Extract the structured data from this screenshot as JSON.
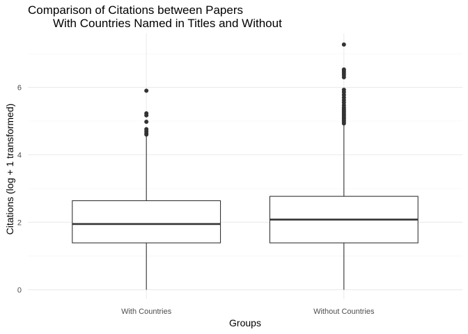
{
  "chart_data": {
    "type": "box",
    "title_line1": "Comparison of Citations between Papers",
    "title_line2": "With Countries Named in Titles and Without",
    "xlabel": "Groups",
    "ylabel": "Citations (log + 1 transformed)",
    "ylim": [
      -0.28,
      7.6
    ],
    "yticks": [
      0,
      2,
      4,
      6
    ],
    "ytick_labels": [
      "0",
      "2",
      "4",
      "6"
    ],
    "grid": true,
    "categories": [
      "With Countries",
      "Without Countries"
    ],
    "boxes": [
      {
        "name": "With Countries",
        "min": 0,
        "q1": 1.39,
        "median": 1.95,
        "q3": 2.64,
        "whisker_high": 4.57,
        "outliers": [
          4.6,
          4.64,
          4.7,
          4.76,
          4.98,
          5.17,
          5.23,
          5.9
        ]
      },
      {
        "name": "Without Countries",
        "min": 0,
        "q1": 1.39,
        "median": 2.08,
        "q3": 2.77,
        "whisker_high": 4.9,
        "outliers": [
          4.93,
          4.98,
          5.03,
          5.08,
          5.12,
          5.17,
          5.21,
          5.26,
          5.3,
          5.35,
          5.4,
          5.47,
          5.55,
          5.62,
          5.7,
          5.78,
          5.86,
          5.93,
          6.3,
          6.37,
          6.43,
          6.48,
          6.53,
          7.27
        ]
      }
    ]
  }
}
